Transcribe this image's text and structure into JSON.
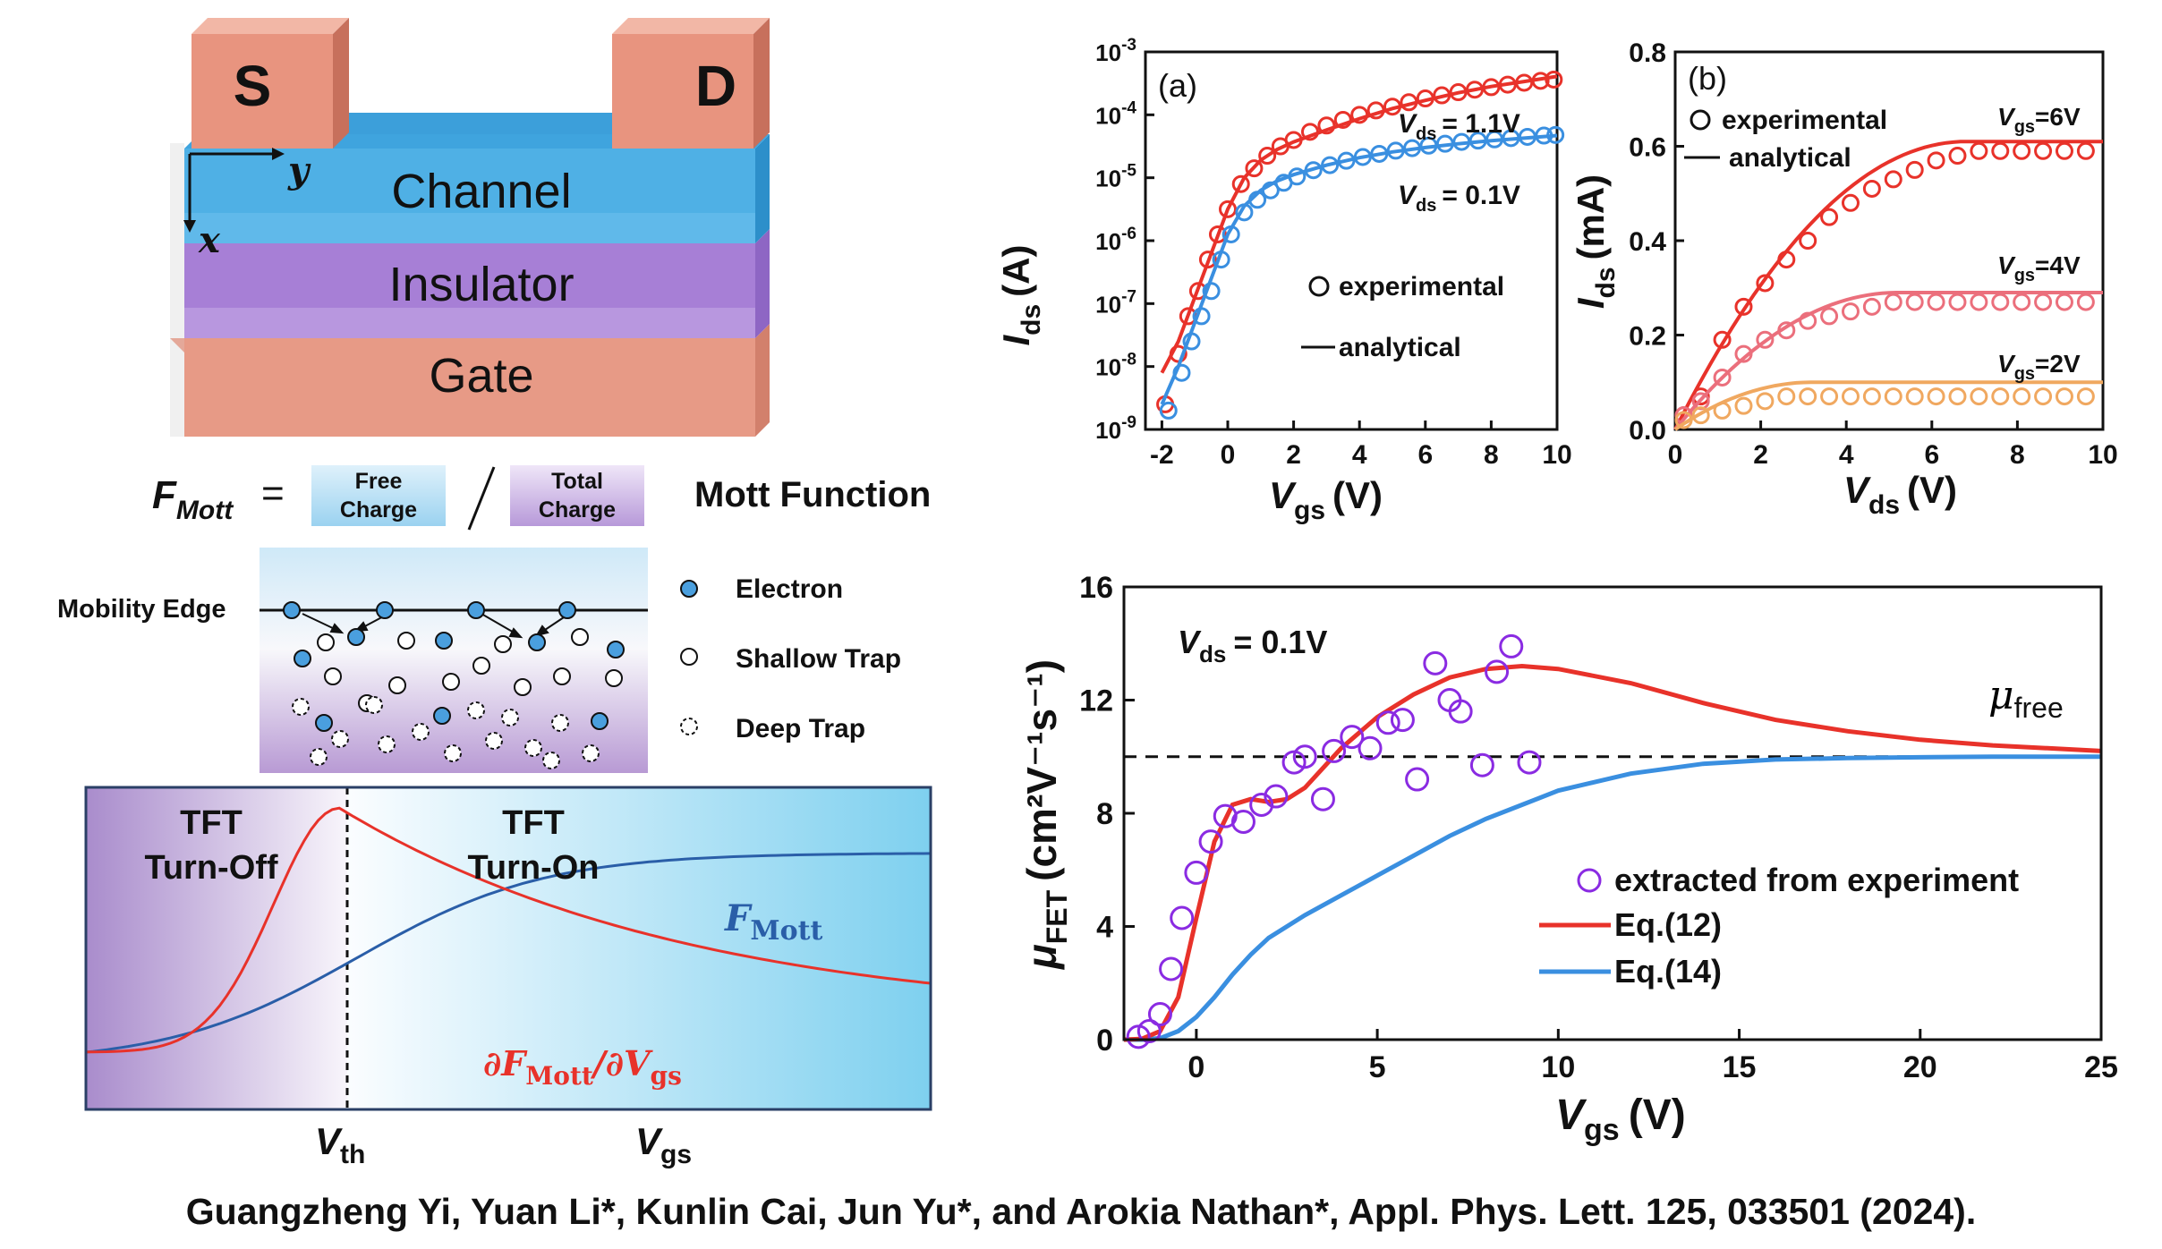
{
  "device": {
    "source": "S",
    "drain": "D",
    "channel": "Channel",
    "insulator": "Insulator",
    "gate": "Gate",
    "axis_y": "y",
    "axis_x": "x"
  },
  "mott_formula": {
    "lhs": "F",
    "lhs_sub": "Mott",
    "equals": "=",
    "free_line1": "Free",
    "free_line2": "Charge",
    "total_line1": "Total",
    "total_line2": "Charge",
    "slash": "/",
    "title": "Mott Function"
  },
  "trap_diagram": {
    "mobility_edge": "Mobility Edge",
    "legend": [
      {
        "label": "Electron",
        "kind": "electron"
      },
      {
        "label": "Shallow Trap",
        "kind": "shallow"
      },
      {
        "label": "Deep Trap",
        "kind": "deep"
      }
    ]
  },
  "concept": {
    "off_line1": "TFT",
    "off_line2": "Turn-Off",
    "on_line1": "TFT",
    "on_line2": "Turn-On",
    "fmott_F": "F",
    "fmott_sub": "Mott",
    "deriv_d1": "∂F",
    "deriv_sub1": "Mott",
    "deriv_d2": "/∂V",
    "deriv_sub2": "gs",
    "vth": "V",
    "vth_sub": "th",
    "vgs": "V",
    "vgs_sub": "gs",
    "colors": {
      "fmott": "#2a5ea8",
      "deriv": "#e8322a"
    }
  },
  "chart_data": [
    {
      "id": "a",
      "type": "scatter",
      "panel_label": "(a)",
      "xlabel": "V",
      "xlabel_sub": "gs",
      "xlabel_unit": "(V)",
      "ylabel": "I",
      "ylabel_sub": "ds",
      "ylabel_unit": "(A)",
      "xlim": [
        -2.5,
        10
      ],
      "yscale": "log",
      "ylim_exp": [
        -9,
        -3
      ],
      "xticks": [
        -2,
        0,
        2,
        4,
        6,
        8,
        10
      ],
      "yticks": [
        "10-9",
        "10-8",
        "10-7",
        "10-6",
        "10-5",
        "10-4",
        "10-3"
      ],
      "legend": {
        "marker_label": "experimental",
        "line_label": "analytical"
      },
      "series": [
        {
          "name": "V",
          "name_sub": "ds",
          "name_value": "= 1.1V",
          "color": "#e8322a",
          "exp_x": [
            -1.9,
            -1.5,
            -1.2,
            -0.9,
            -0.6,
            -0.3,
            0,
            0.4,
            0.8,
            1.2,
            1.6,
            2,
            2.5,
            3,
            3.5,
            4,
            4.5,
            5,
            5.5,
            6,
            6.5,
            7,
            7.5,
            8,
            8.5,
            9,
            9.5,
            9.9
          ],
          "exp_logy": [
            -8.6,
            -7.8,
            -7.2,
            -6.8,
            -6.3,
            -5.9,
            -5.5,
            -5.1,
            -4.85,
            -4.65,
            -4.5,
            -4.4,
            -4.27,
            -4.17,
            -4.08,
            -4.0,
            -3.93,
            -3.87,
            -3.8,
            -3.74,
            -3.69,
            -3.64,
            -3.6,
            -3.56,
            -3.52,
            -3.49,
            -3.46,
            -3.44
          ],
          "fit_x": [
            -2,
            -1.5,
            -1,
            -0.5,
            0,
            0.5,
            1,
            1.5,
            2,
            3,
            4,
            5,
            6,
            7,
            8,
            9,
            10
          ],
          "fit_logy": [
            -8.1,
            -7.6,
            -6.9,
            -6.2,
            -5.5,
            -5.0,
            -4.72,
            -4.55,
            -4.43,
            -4.24,
            -4.06,
            -3.9,
            -3.77,
            -3.65,
            -3.55,
            -3.47,
            -3.39
          ]
        },
        {
          "name": "V",
          "name_sub": "ds",
          "name_value": "= 0.1V",
          "color": "#3a8fe0",
          "exp_x": [
            -1.8,
            -1.4,
            -1.1,
            -0.8,
            -0.5,
            -0.2,
            0.1,
            0.5,
            0.9,
            1.3,
            1.7,
            2.1,
            2.6,
            3.1,
            3.6,
            4.1,
            4.6,
            5.1,
            5.6,
            6.1,
            6.6,
            7.1,
            7.6,
            8.1,
            8.6,
            9.1,
            9.6,
            9.95
          ],
          "exp_logy": [
            -8.7,
            -8.1,
            -7.6,
            -7.2,
            -6.8,
            -6.3,
            -5.9,
            -5.55,
            -5.35,
            -5.2,
            -5.08,
            -4.98,
            -4.88,
            -4.8,
            -4.73,
            -4.67,
            -4.62,
            -4.57,
            -4.53,
            -4.49,
            -4.46,
            -4.43,
            -4.41,
            -4.39,
            -4.37,
            -4.35,
            -4.33,
            -4.32
          ],
          "fit_x": [
            -2,
            -1.5,
            -1,
            -0.5,
            0,
            0.5,
            1,
            1.5,
            2,
            3,
            4,
            5,
            6,
            7,
            8,
            9,
            10
          ],
          "fit_logy": [
            -8.6,
            -8.0,
            -7.3,
            -6.6,
            -5.9,
            -5.45,
            -5.2,
            -5.05,
            -4.95,
            -4.8,
            -4.68,
            -4.59,
            -4.52,
            -4.46,
            -4.41,
            -4.37,
            -4.33
          ]
        }
      ]
    },
    {
      "id": "b",
      "type": "scatter",
      "panel_label": "(b)",
      "xlabel": "V",
      "xlabel_sub": "ds",
      "xlabel_unit": "(V)",
      "ylabel": "I",
      "ylabel_sub": "ds",
      "ylabel_unit": "(mA)",
      "xlim": [
        0,
        10
      ],
      "ylim": [
        0,
        0.8
      ],
      "xticks": [
        0,
        2,
        4,
        6,
        8,
        10
      ],
      "yticks": [
        0.0,
        0.2,
        0.4,
        0.6,
        0.8
      ],
      "ytick_labels": [
        "0.0",
        "0.2",
        "0.4",
        "0.6",
        "0.8"
      ],
      "legend": {
        "marker_label": "experimental",
        "line_label": "analytical"
      },
      "series": [
        {
          "name": "V",
          "name_sub": "gs",
          "name_value": "=6V",
          "color": "#e8322a",
          "sat": 0.61,
          "vsat": 6.8,
          "exp_x": [
            0.2,
            0.6,
            1.1,
            1.6,
            2.1,
            2.6,
            3.1,
            3.6,
            4.1,
            4.6,
            5.1,
            5.6,
            6.1,
            6.6,
            7.1,
            7.6,
            8.1,
            8.6,
            9.1,
            9.6
          ],
          "exp_y": [
            0.03,
            0.07,
            0.19,
            0.26,
            0.31,
            0.36,
            0.4,
            0.45,
            0.48,
            0.51,
            0.53,
            0.55,
            0.57,
            0.58,
            0.59,
            0.59,
            0.59,
            0.59,
            0.59,
            0.59
          ]
        },
        {
          "name": "V",
          "name_sub": "gs",
          "name_value": "=4V",
          "color": "#eb6f7c",
          "sat": 0.29,
          "vsat": 5.2,
          "exp_x": [
            0.2,
            0.6,
            1.1,
            1.6,
            2.1,
            2.6,
            3.1,
            3.6,
            4.1,
            4.6,
            5.1,
            5.6,
            6.1,
            6.6,
            7.1,
            7.6,
            8.1,
            8.6,
            9.1,
            9.6
          ],
          "exp_y": [
            0.03,
            0.06,
            0.11,
            0.16,
            0.19,
            0.21,
            0.23,
            0.24,
            0.25,
            0.26,
            0.27,
            0.27,
            0.27,
            0.27,
            0.27,
            0.27,
            0.27,
            0.27,
            0.27,
            0.27
          ]
        },
        {
          "name": "V",
          "name_sub": "gs",
          "name_value": "=2V",
          "color": "#f0a860",
          "sat": 0.1,
          "vsat": 3.2,
          "exp_x": [
            0.2,
            0.6,
            1.1,
            1.6,
            2.1,
            2.6,
            3.1,
            3.6,
            4.1,
            4.6,
            5.1,
            5.6,
            6.1,
            6.6,
            7.1,
            7.6,
            8.1,
            8.6,
            9.1,
            9.6
          ],
          "exp_y": [
            0.02,
            0.03,
            0.04,
            0.05,
            0.06,
            0.07,
            0.07,
            0.07,
            0.07,
            0.07,
            0.07,
            0.07,
            0.07,
            0.07,
            0.07,
            0.07,
            0.07,
            0.07,
            0.07,
            0.07
          ]
        }
      ]
    },
    {
      "id": "c",
      "type": "scatter",
      "xlabel": "V",
      "xlabel_sub": "gs",
      "xlabel_unit": "(V)",
      "ylabel": "μ",
      "ylabel_sub": "FET",
      "ylabel_unit": "(cm²V⁻¹s⁻¹)",
      "xlim": [
        -2,
        25
      ],
      "ylim": [
        0,
        16
      ],
      "xticks": [
        0,
        5,
        10,
        15,
        20,
        25
      ],
      "yticks": [
        0,
        4,
        8,
        12,
        16
      ],
      "annotation": {
        "label": "V",
        "sub": "ds",
        "value": "= 0.1V"
      },
      "free_label": {
        "mu": "μ",
        "sub": "free"
      },
      "free_level": 10,
      "legend": [
        {
          "label": "extracted from experiment",
          "kind": "marker",
          "color": "#8a2be2"
        },
        {
          "label": "Eq.(12)",
          "kind": "line",
          "color": "#e8322a"
        },
        {
          "label": "Eq.(14)",
          "kind": "line",
          "color": "#3a8fe0"
        }
      ],
      "experiment": {
        "x": [
          -1.6,
          -1.3,
          -1.0,
          -0.7,
          -0.4,
          0.0,
          0.4,
          0.8,
          1.3,
          1.8,
          2.2,
          2.7,
          3.0,
          3.5,
          3.8,
          4.3,
          4.8,
          5.3,
          5.7,
          6.1,
          6.6,
          7.0,
          7.3,
          7.9,
          8.3,
          8.7,
          9.2
        ],
        "y": [
          0.1,
          0.3,
          0.9,
          2.5,
          4.3,
          5.9,
          7.0,
          7.9,
          7.7,
          8.3,
          8.6,
          9.8,
          10.0,
          8.5,
          10.2,
          10.7,
          10.3,
          11.2,
          11.3,
          9.2,
          13.3,
          12.0,
          11.6,
          9.7,
          13.0,
          13.9,
          9.8
        ]
      },
      "eq12": {
        "x": [
          -2,
          -1.5,
          -1,
          -0.5,
          0,
          0.5,
          1,
          1.5,
          2,
          2.5,
          3,
          3.5,
          4,
          5,
          6,
          7,
          8,
          9,
          10,
          12,
          14,
          16,
          18,
          20,
          22,
          25
        ],
        "y": [
          0,
          0.03,
          0.3,
          1.5,
          4.3,
          7.0,
          8.3,
          8.5,
          8.4,
          8.5,
          8.9,
          9.6,
          10.3,
          11.4,
          12.2,
          12.8,
          13.1,
          13.2,
          13.1,
          12.6,
          11.9,
          11.3,
          10.9,
          10.6,
          10.4,
          10.2
        ]
      },
      "eq14": {
        "x": [
          -2,
          -1.5,
          -1,
          -0.5,
          0,
          0.5,
          1,
          1.5,
          2,
          3,
          4,
          5,
          6,
          7,
          8,
          9,
          10,
          12,
          14,
          16,
          18,
          20,
          22,
          25
        ],
        "y": [
          0,
          0,
          0.05,
          0.3,
          0.8,
          1.5,
          2.3,
          3.0,
          3.6,
          4.4,
          5.1,
          5.8,
          6.5,
          7.2,
          7.8,
          8.3,
          8.8,
          9.4,
          9.75,
          9.9,
          9.95,
          9.98,
          10.0,
          10.0
        ]
      }
    }
  ],
  "citation": "Guangzheng Yi, Yuan Li*, Kunlin Cai, Jun Yu*, and Arokia Nathan*, Appl. Phys. Lett. 125, 033501 (2024)."
}
